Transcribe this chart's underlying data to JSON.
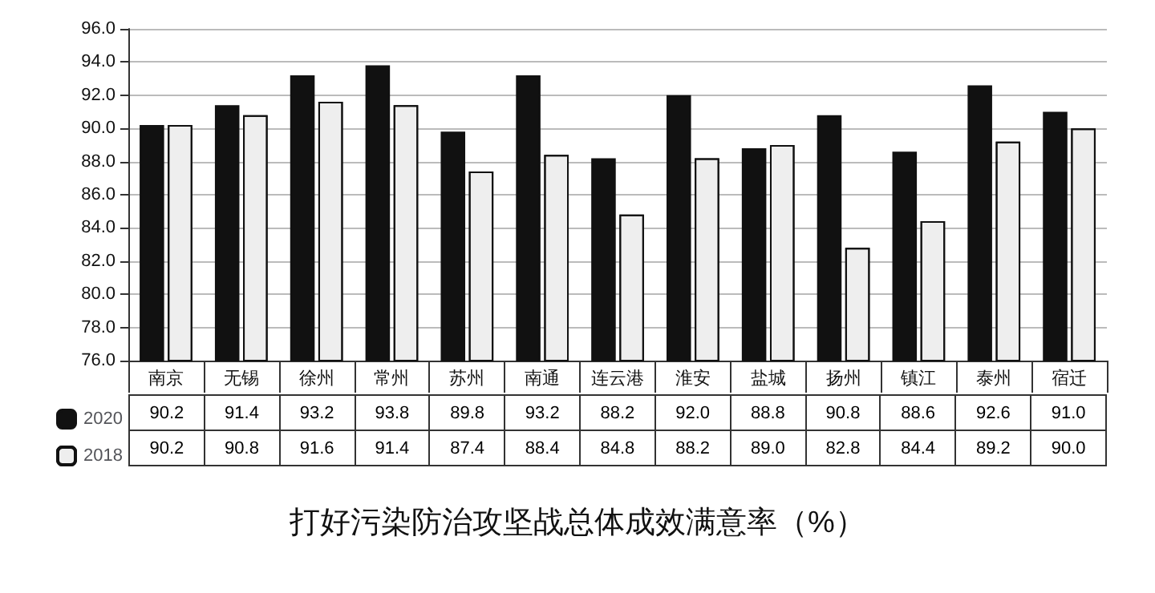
{
  "chart_data": {
    "type": "bar",
    "title": "打好污染防治攻坚战总体成效满意率（%）",
    "categories": [
      "南京",
      "无锡",
      "徐州",
      "常州",
      "苏州",
      "南通",
      "连云港",
      "淮安",
      "盐城",
      "扬州",
      "镇江",
      "泰州",
      "宿迁"
    ],
    "series": [
      {
        "name": "2020",
        "color": "#111111",
        "values": [
          90.2,
          91.4,
          93.2,
          93.8,
          89.8,
          93.2,
          88.2,
          92.0,
          88.8,
          90.8,
          88.6,
          92.6,
          91.0
        ],
        "value_labels": [
          "90.2",
          "91.4",
          "93.2",
          "93.8",
          "89.8",
          "93.2",
          "88.2",
          "92.0",
          "88.8",
          "90.8",
          "88.6",
          "92.6",
          "91.0"
        ]
      },
      {
        "name": "2018",
        "color": "#eeeeee",
        "values": [
          90.2,
          90.8,
          91.6,
          91.4,
          87.4,
          88.4,
          84.8,
          88.2,
          89.0,
          82.8,
          84.4,
          89.2,
          90.0
        ],
        "value_labels": [
          "90.2",
          "90.8",
          "91.6",
          "91.4",
          "87.4",
          "88.4",
          "84.8",
          "88.2",
          "89.0",
          "82.8",
          "84.4",
          "89.2",
          "90.0"
        ]
      }
    ],
    "ylim": [
      76,
      96
    ],
    "yticks": [
      {
        "value": 76,
        "label": "76.0"
      },
      {
        "value": 78,
        "label": "78.0"
      },
      {
        "value": 80,
        "label": "80.0"
      },
      {
        "value": 82,
        "label": "82.0"
      },
      {
        "value": 84,
        "label": "84.0"
      },
      {
        "value": 86,
        "label": "86.0"
      },
      {
        "value": 88,
        "label": "88.0"
      },
      {
        "value": 90,
        "label": "90.0"
      },
      {
        "value": 92,
        "label": "92.0"
      },
      {
        "value": 94,
        "label": "94.0"
      },
      {
        "value": 96,
        "label": "96.0"
      }
    ],
    "grid": "y",
    "legend": "bottom left"
  }
}
